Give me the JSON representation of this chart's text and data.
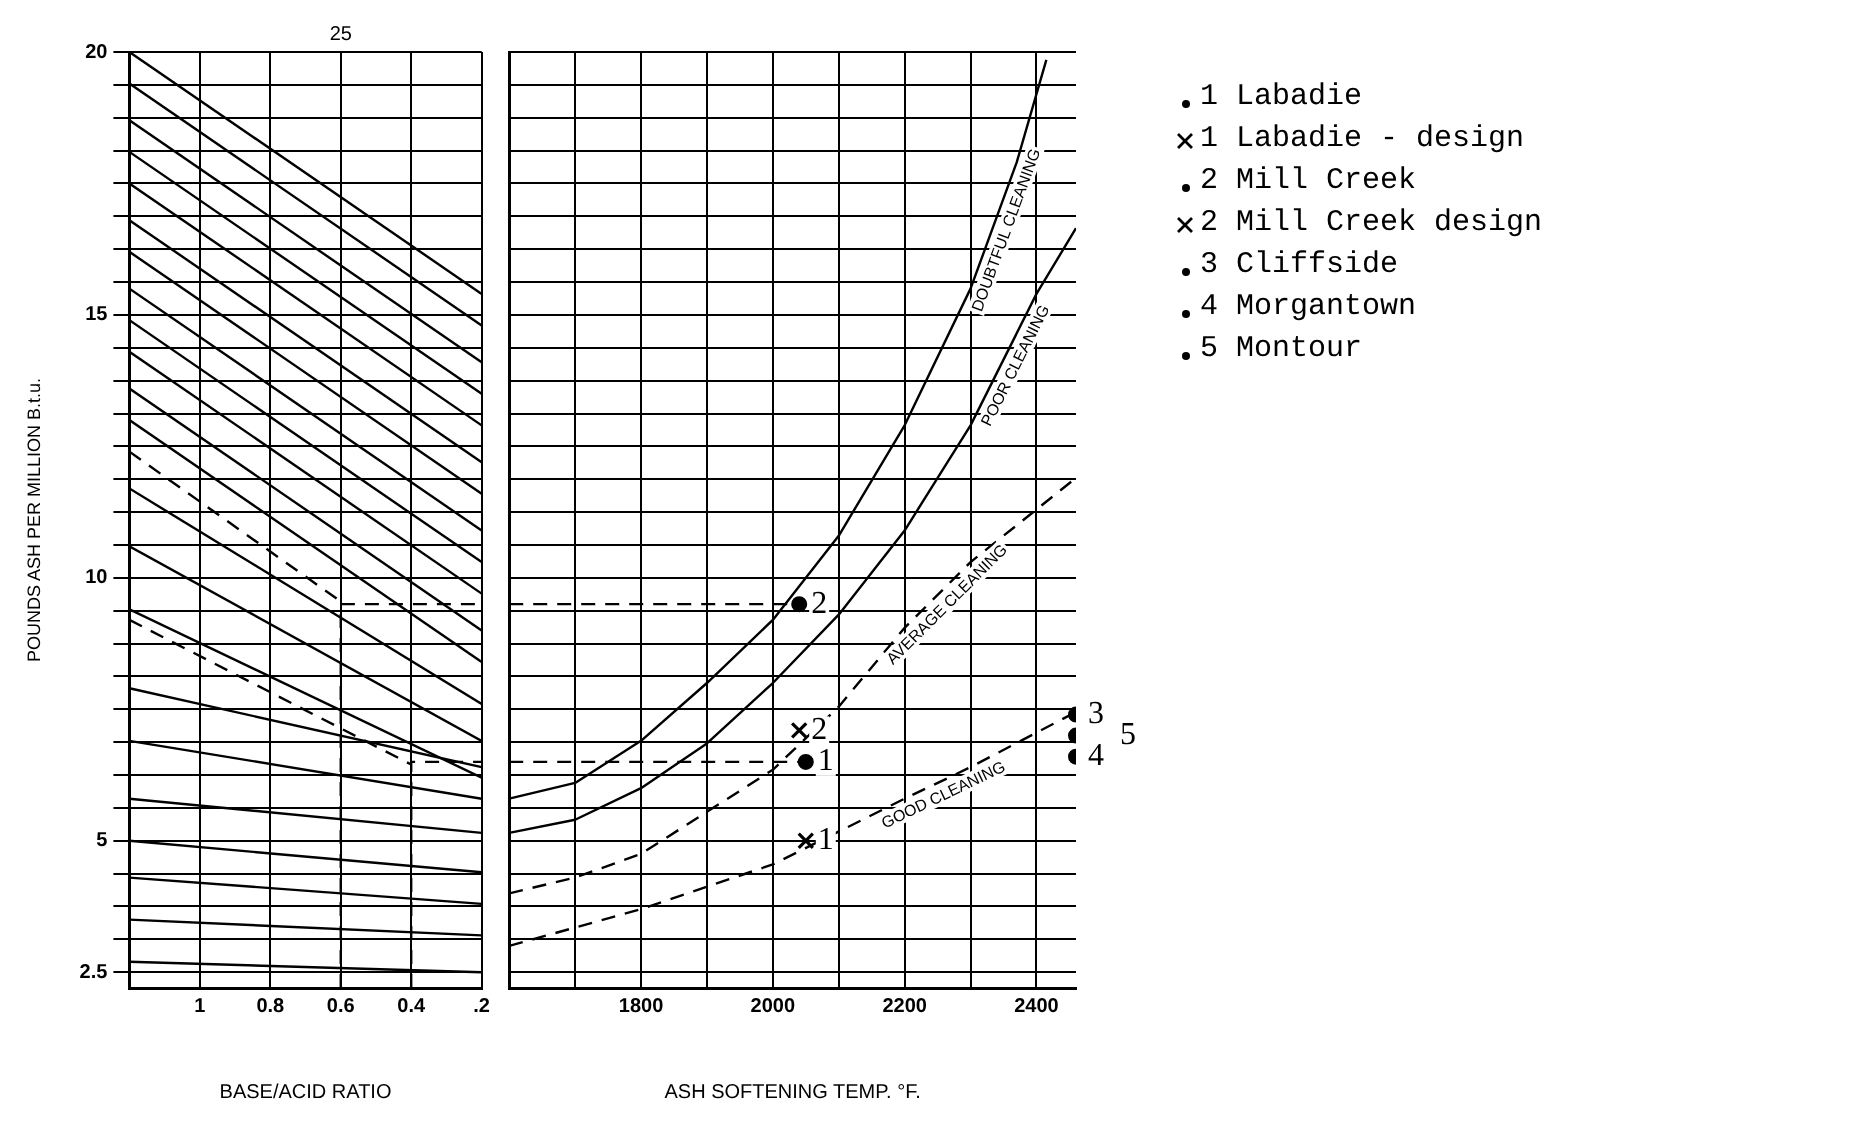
{
  "chart_data": [
    {
      "type": "line",
      "ylabel": "POUNDS ASH PER MILLION B.t.u.",
      "xlabel": "BASE/ACID RATIO",
      "xlim": [
        1.2,
        0.2
      ],
      "xticks": [
        1.0,
        0.8,
        0.6,
        0.4,
        {
          "value": 0.2,
          "label": ".2"
        }
      ],
      "ylim": [
        2.2,
        20
      ],
      "yticks": [
        2.5,
        {
          "value": 3.125,
          "label": null
        },
        {
          "value": 3.75,
          "label": null
        },
        {
          "value": 4.375,
          "label": null
        },
        5,
        {
          "value": 5.625,
          "label": null
        },
        {
          "value": 6.25,
          "label": null
        },
        {
          "value": 6.875,
          "label": null
        },
        {
          "value": 7.5,
          "label": null
        },
        {
          "value": 8.125,
          "label": null
        },
        {
          "value": 8.75,
          "label": null
        },
        {
          "value": 9.375,
          "label": null
        },
        10,
        {
          "value": 10.625,
          "label": null
        },
        {
          "value": 11.25,
          "label": null
        },
        {
          "value": 11.875,
          "label": null
        },
        {
          "value": 12.5,
          "label": null
        },
        {
          "value": 13.125,
          "label": null
        },
        {
          "value": 13.75,
          "label": null
        },
        {
          "value": 14.375,
          "label": null
        },
        15,
        {
          "value": 15.625,
          "label": null
        },
        {
          "value": 16.25,
          "label": null
        },
        {
          "value": 16.875,
          "label": null
        },
        {
          "value": 17.5,
          "label": null
        },
        {
          "value": 18.125,
          "label": null
        },
        {
          "value": 18.75,
          "label": null
        },
        {
          "value": 19.375,
          "label": null
        },
        20
      ],
      "grid": true,
      "annotations": [
        "25"
      ],
      "series": [
        {
          "type": "line",
          "color": "#000000",
          "x": [
            1.2,
            0.2
          ],
          "values": [
            20,
            15.4
          ]
        },
        {
          "type": "line",
          "color": "#000000",
          "x": [
            1.2,
            0.2
          ],
          "values": [
            19.4,
            14.8
          ]
        },
        {
          "type": "line",
          "color": "#000000",
          "x": [
            1.2,
            0.2
          ],
          "values": [
            18.7,
            14.1
          ]
        },
        {
          "type": "line",
          "color": "#000000",
          "x": [
            1.2,
            0.2
          ],
          "values": [
            18.1,
            13.5
          ]
        },
        {
          "type": "line",
          "color": "#000000",
          "x": [
            1.2,
            0.2
          ],
          "values": [
            17.5,
            12.9
          ]
        },
        {
          "type": "line",
          "color": "#000000",
          "x": [
            1.2,
            0.2
          ],
          "values": [
            16.8,
            12.2
          ]
        },
        {
          "type": "line",
          "color": "#000000",
          "x": [
            1.2,
            0.2
          ],
          "values": [
            16.2,
            11.6
          ]
        },
        {
          "type": "line",
          "color": "#000000",
          "x": [
            1.2,
            0.2
          ],
          "values": [
            15.5,
            10.9
          ]
        },
        {
          "type": "line",
          "color": "#000000",
          "x": [
            1.2,
            0.2
          ],
          "values": [
            14.9,
            10.3
          ]
        },
        {
          "type": "line",
          "color": "#000000",
          "x": [
            1.2,
            0.2
          ],
          "values": [
            14.3,
            9.7
          ]
        },
        {
          "type": "line",
          "color": "#000000",
          "x": [
            1.2,
            0.2
          ],
          "values": [
            13.6,
            9.0
          ]
        },
        {
          "type": "line",
          "color": "#000000",
          "x": [
            1.2,
            0.2
          ],
          "values": [
            13.0,
            8.4
          ]
        },
        {
          "type": "line",
          "color": "#000000",
          "x": [
            1.2,
            0.2
          ],
          "values": [
            11.7,
            7.6
          ]
        },
        {
          "type": "line",
          "color": "#000000",
          "x": [
            1.2,
            0.2
          ],
          "values": [
            10.6,
            6.9
          ]
        },
        {
          "type": "line",
          "color": "#000000",
          "x": [
            1.2,
            0.2
          ],
          "values": [
            9.4,
            6.2
          ]
        },
        {
          "type": "line",
          "color": "#000000",
          "x": [
            1.2,
            0.2
          ],
          "values": [
            7.9,
            6.4
          ]
        },
        {
          "type": "line",
          "color": "#000000",
          "x": [
            1.2,
            0.2
          ],
          "values": [
            6.9,
            5.8
          ]
        },
        {
          "type": "line",
          "color": "#000000",
          "x": [
            1.2,
            0.2
          ],
          "values": [
            5.8,
            5.15
          ]
        },
        {
          "type": "line",
          "color": "#000000",
          "x": [
            1.2,
            0.2
          ],
          "values": [
            5.0,
            4.4
          ]
        },
        {
          "type": "line",
          "color": "#000000",
          "x": [
            1.2,
            0.2
          ],
          "values": [
            4.3,
            3.8
          ]
        },
        {
          "type": "line",
          "color": "#000000",
          "x": [
            1.2,
            0.2
          ],
          "values": [
            3.5,
            3.2
          ]
        },
        {
          "type": "line",
          "color": "#000000",
          "x": [
            1.2,
            0.2
          ],
          "values": [
            2.7,
            2.5
          ]
        },
        {
          "type": "line",
          "color": "#000000",
          "line_style": "dashed",
          "x": [
            1.2,
            0.6
          ],
          "values": [
            12.4,
            9.55
          ]
        },
        {
          "type": "line",
          "color": "#000000",
          "line_style": "dashed",
          "x": [
            1.2,
            0.4
          ],
          "values": [
            9.2,
            6.45
          ]
        },
        {
          "type": "line",
          "color": "#000000",
          "line_style": "dashed",
          "x": [
            0.6,
            0.6,
            0.2
          ],
          "values": [
            2.2,
            9.5,
            9.5
          ]
        },
        {
          "type": "line",
          "color": "#000000",
          "line_style": "dashed",
          "x": [
            0.4,
            0.4,
            0.2
          ],
          "values": [
            2.2,
            6.5,
            6.5
          ]
        }
      ]
    },
    {
      "type": "line",
      "xlabel": "ASH SOFTENING TEMP. °F.",
      "xlim": [
        1600,
        2460
      ],
      "xticks": [
        {
          "value": 1700,
          "label": null
        },
        1800,
        {
          "value": 1900,
          "label": null
        },
        2000,
        {
          "value": 2100,
          "label": null
        },
        2200,
        {
          "value": 2300,
          "label": null
        },
        2400
      ],
      "ylim": [
        2.2,
        20
      ],
      "yticks": [
        2.5,
        {
          "value": 3.125,
          "label": null
        },
        {
          "value": 3.75,
          "label": null
        },
        {
          "value": 4.375,
          "label": null
        },
        5,
        {
          "value": 5.625,
          "label": null
        },
        {
          "value": 6.25,
          "label": null
        },
        {
          "value": 6.875,
          "label": null
        },
        {
          "value": 7.5,
          "label": null
        },
        {
          "value": 8.125,
          "label": null
        },
        {
          "value": 8.75,
          "label": null
        },
        {
          "value": 9.375,
          "label": null
        },
        10,
        {
          "value": 10.625,
          "label": null
        },
        {
          "value": 11.25,
          "label": null
        },
        {
          "value": 11.875,
          "label": null
        },
        {
          "value": 12.5,
          "label": null
        },
        {
          "value": 13.125,
          "label": null
        },
        {
          "value": 13.75,
          "label": null
        },
        {
          "value": 14.375,
          "label": null
        },
        15,
        {
          "value": 15.625,
          "label": null
        },
        {
          "value": 16.25,
          "label": null
        },
        {
          "value": 16.875,
          "label": null
        },
        {
          "value": 17.5,
          "label": null
        },
        {
          "value": 18.125,
          "label": null
        },
        {
          "value": 18.75,
          "label": null
        },
        {
          "value": 19.375,
          "label": null
        },
        20
      ],
      "grid": true,
      "tick_labels": "x",
      "legend": "right",
      "annotations": [
        {
          "text": "1",
          "x": 2050,
          "y": 6.5
        },
        {
          "text": "1",
          "x": 2050,
          "y": 5.0
        },
        {
          "text": "2",
          "x": 2040,
          "y": 9.5
        },
        {
          "text": "2",
          "x": 2040,
          "y": 7.1
        },
        {
          "text": "3",
          "x": 2460,
          "y": 7.4
        },
        {
          "text": "4",
          "x": 2460,
          "y": 6.6
        },
        {
          "text": "5",
          "x": 2460,
          "y": 7.0
        }
      ],
      "series": [
        {
          "type": "line",
          "color": "#000000",
          "line_style": "dashed",
          "x": [
            1600,
            2040
          ],
          "values": [
            9.5,
            9.5
          ]
        },
        {
          "type": "line",
          "color": "#000000",
          "line_style": "dashed",
          "x": [
            1600,
            2050
          ],
          "values": [
            6.5,
            6.5
          ]
        },
        {
          "type": "line",
          "name": "DOUBTFUL CLEANING",
          "color": "#000000",
          "line_style": "solid",
          "x": [
            1600,
            1700,
            1800,
            1900,
            2000,
            2100,
            2200,
            2300,
            2370,
            2415
          ],
          "values": [
            5.8,
            6.1,
            6.9,
            8.0,
            9.2,
            10.8,
            12.9,
            15.5,
            17.9,
            19.85
          ]
        },
        {
          "type": "line",
          "name": "POOR CLEANING",
          "color": "#000000",
          "line_style": "solid",
          "x": [
            1600,
            1700,
            1800,
            1900,
            2000,
            2100,
            2200,
            2300,
            2400,
            2460
          ],
          "values": [
            5.15,
            5.4,
            6.0,
            6.85,
            8.0,
            9.3,
            10.9,
            12.9,
            15.4,
            16.65
          ]
        },
        {
          "type": "line",
          "name": "AVERAGE CLEANING",
          "color": "#000000",
          "line_style": "dashed",
          "x": [
            1600,
            1700,
            1800,
            2000,
            2100,
            2200,
            2300,
            2460
          ],
          "values": [
            4.0,
            4.3,
            4.75,
            6.35,
            7.55,
            9.05,
            10.3,
            11.9
          ]
        },
        {
          "type": "line",
          "name": "GOOD CLEANING",
          "color": "#000000",
          "line_style": "dashed",
          "x": [
            1600,
            1800,
            2000,
            2200,
            2300,
            2460
          ],
          "values": [
            3.0,
            3.7,
            4.55,
            5.8,
            6.4,
            7.45
          ]
        },
        {
          "type": "scatter",
          "name": "1 Labadie",
          "color": "#000000",
          "marker": "circle",
          "x": [
            2050
          ],
          "values": [
            6.5
          ]
        },
        {
          "type": "scatter",
          "name": "1 Labadie - design",
          "color": "#000000",
          "marker": "cross",
          "x": [
            2050
          ],
          "values": [
            5.0
          ]
        },
        {
          "type": "scatter",
          "name": "2 Mill Creek",
          "color": "#000000",
          "marker": "circle",
          "x": [
            2040
          ],
          "values": [
            9.5
          ]
        },
        {
          "type": "scatter",
          "name": "2 Mill Creek design",
          "color": "#000000",
          "marker": "cross",
          "x": [
            2040
          ],
          "values": [
            7.1
          ]
        },
        {
          "type": "scatter",
          "name": "3 Cliffside",
          "color": "#000000",
          "marker": "circle",
          "x": [
            2460
          ],
          "values": [
            7.4
          ]
        },
        {
          "type": "scatter",
          "name": "4 Morgantown",
          "color": "#000000",
          "marker": "circle",
          "x": [
            2460
          ],
          "values": [
            6.6
          ]
        },
        {
          "type": "scatter",
          "name": "5 Montour",
          "color": "#000000",
          "marker": "circle",
          "x": [
            2460
          ],
          "values": [
            7.0
          ]
        }
      ]
    }
  ]
}
